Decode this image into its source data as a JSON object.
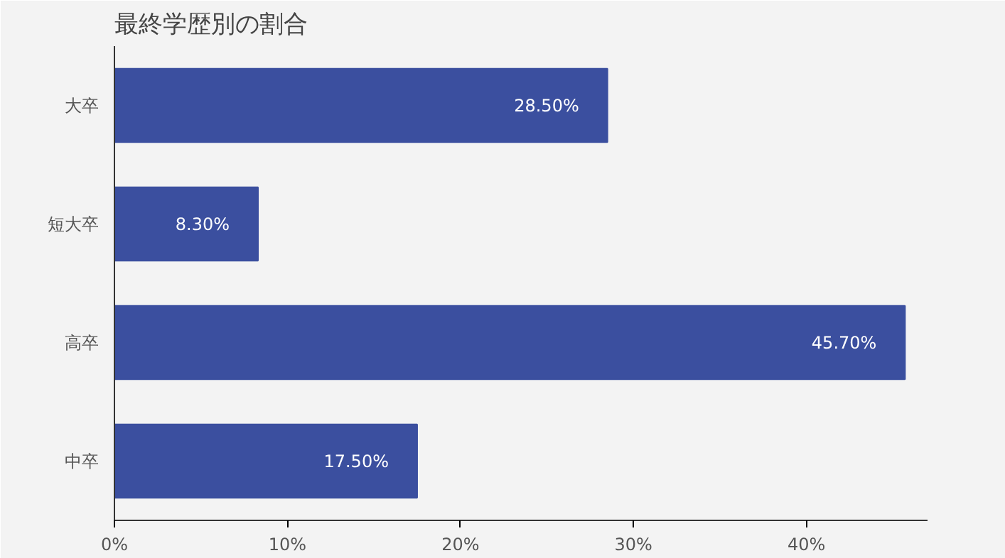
{
  "chart_data": {
    "type": "bar",
    "orientation": "horizontal",
    "title": "最終学歴別の割合",
    "categories": [
      "大卒",
      "短大卒",
      "高卒",
      "中卒"
    ],
    "values": [
      28.5,
      8.3,
      45.7,
      17.5
    ],
    "color": "#3b4f9f",
    "value_labels": [
      "28.50%",
      "8.30%",
      "45.70%",
      "17.50%"
    ],
    "xlim": [
      0,
      47
    ],
    "xticks": [
      {
        "value": 0,
        "label": "0%"
      },
      {
        "value": 10,
        "label": "10%"
      },
      {
        "value": 20,
        "label": "20%"
      },
      {
        "value": 30,
        "label": "30%"
      },
      {
        "value": 40,
        "label": "40%"
      }
    ],
    "grid": false
  }
}
